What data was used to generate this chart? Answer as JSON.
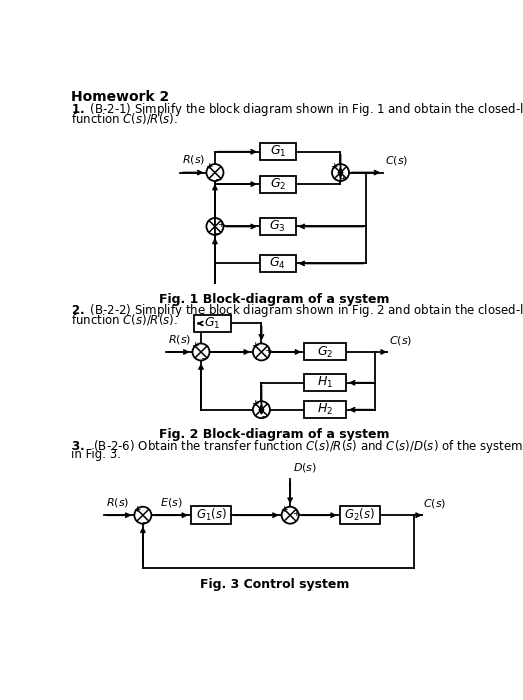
{
  "bg_color": "#ffffff",
  "fig1_caption": "Fig. 1 Block-diagram of a system",
  "fig2_caption": "Fig. 2 Block-diagram of a system",
  "fig3_caption": "Fig. 3 Control system"
}
